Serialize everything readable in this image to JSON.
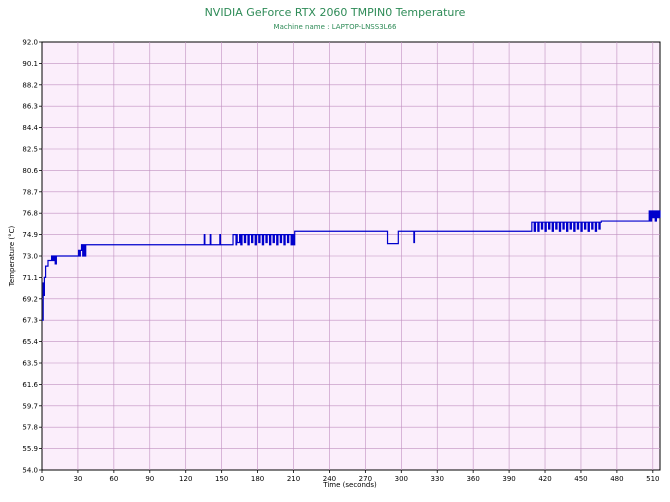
{
  "chart_data": {
    "type": "line",
    "title": "NVIDIA GeForce RTX 2060 TMPIN0 Temperature",
    "subtitle": "Machine name : LAPTOP-LNSS3L66",
    "xlabel": "Time (seconds)",
    "ylabel": "Temperature (°C)",
    "xlim": [
      0,
      516
    ],
    "ylim": [
      54.0,
      92.0
    ],
    "xticks": [
      0,
      30,
      60,
      90,
      120,
      150,
      180,
      210,
      240,
      270,
      300,
      330,
      360,
      390,
      420,
      450,
      480,
      510
    ],
    "yticks": [
      "54.0",
      "55.9",
      "57.8",
      "59.7",
      "61.6",
      "63.5",
      "65.4",
      "67.3",
      "69.2",
      "71.1",
      "73.0",
      "74.9",
      "76.8",
      "78.7",
      "80.6",
      "82.5",
      "84.4",
      "86.3",
      "88.2",
      "90.1",
      "92.0"
    ],
    "grid": true,
    "background_color": "#fbeefb",
    "grid_color": "#c090c0",
    "line_color": "#0000cc",
    "series": [
      {
        "x": [
          0,
          1,
          1.5,
          2,
          3,
          4,
          5,
          6,
          8,
          9,
          10,
          11,
          12,
          30,
          30.5,
          31,
          32,
          33,
          34,
          35,
          36,
          36.5,
          37,
          38,
          135,
          135.5,
          136,
          137,
          140,
          140.5,
          141,
          143,
          148,
          148.5,
          149,
          150,
          151,
          159,
          159.5,
          161,
          162,
          162.5,
          163,
          165,
          166,
          167,
          169,
          170,
          172,
          173,
          175,
          176,
          178,
          179,
          181,
          182,
          184,
          185,
          187,
          188,
          190,
          191,
          193,
          194,
          196,
          197,
          199,
          200,
          202,
          203,
          205,
          206,
          208,
          209,
          210,
          211,
          288,
          288.5,
          297,
          297.5,
          310,
          310.5,
          311,
          312,
          408,
          409,
          411,
          412,
          414,
          415,
          417,
          418,
          420,
          421,
          423,
          424,
          426,
          427,
          429,
          430,
          432,
          433,
          435,
          436,
          438,
          439,
          441,
          442,
          444,
          445,
          447,
          448,
          450,
          451,
          453,
          454,
          456,
          457,
          459,
          460,
          462,
          463,
          465,
          466,
          467,
          468,
          505,
          506,
          507,
          508,
          509,
          510,
          511,
          512,
          513,
          514,
          515,
          516
        ],
        "y": [
          67.3,
          70.6,
          69.5,
          71.1,
          72.1,
          72.1,
          72.6,
          72.6,
          73.0,
          72.6,
          73.0,
          72.3,
          73.0,
          73.0,
          73.5,
          73.0,
          73.5,
          74.0,
          73.0,
          74.0,
          73.0,
          74.0,
          74.0,
          74.0,
          74.0,
          74.9,
          74.0,
          74.0,
          74.0,
          74.9,
          74.0,
          74.0,
          74.0,
          74.9,
          74.0,
          74.0,
          74.0,
          74.0,
          74.9,
          74.9,
          74.0,
          74.9,
          74.2,
          74.9,
          74.0,
          74.9,
          74.2,
          74.9,
          74.0,
          74.9,
          74.2,
          74.9,
          74.0,
          74.9,
          74.2,
          74.9,
          74.0,
          74.9,
          74.2,
          74.9,
          74.0,
          74.9,
          74.2,
          74.9,
          74.0,
          74.9,
          74.2,
          74.9,
          74.0,
          74.9,
          74.2,
          74.9,
          74.0,
          74.9,
          74.0,
          75.2,
          75.2,
          74.1,
          74.1,
          75.2,
          75.2,
          74.2,
          75.2,
          75.2,
          75.2,
          76.0,
          75.2,
          76.0,
          75.2,
          76.0,
          75.4,
          76.0,
          75.2,
          76.0,
          75.4,
          76.0,
          75.2,
          76.0,
          75.4,
          76.0,
          75.2,
          76.0,
          75.4,
          76.0,
          75.2,
          76.0,
          75.4,
          76.0,
          75.2,
          76.0,
          75.4,
          76.0,
          75.2,
          76.0,
          75.4,
          76.0,
          75.2,
          76.0,
          75.4,
          76.0,
          75.2,
          76.0,
          75.4,
          76.0,
          76.1,
          76.1,
          76.1,
          76.1,
          77.0,
          76.1,
          77.0,
          76.4,
          77.0,
          76.1,
          77.0,
          76.4,
          77.0,
          76.4
        ]
      }
    ]
  }
}
